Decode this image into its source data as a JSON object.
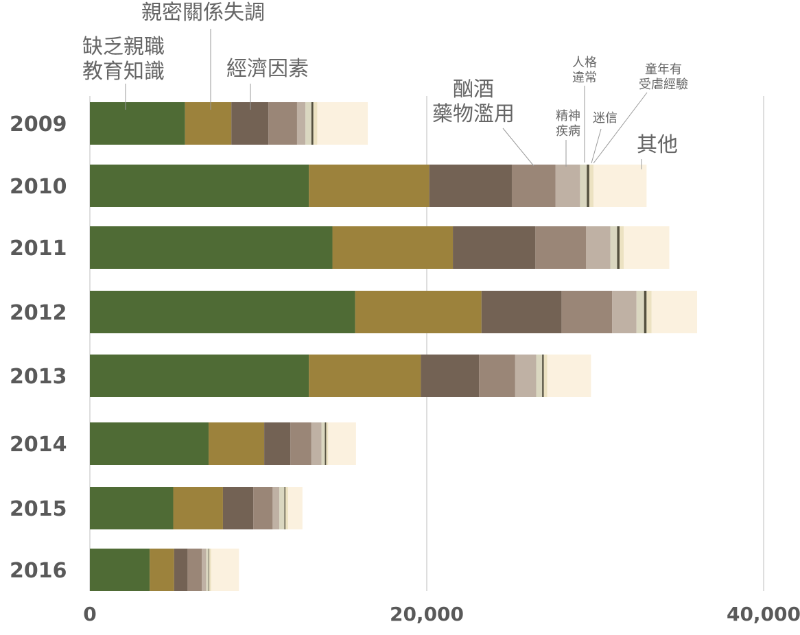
{
  "chart_data": {
    "type": "bar",
    "orientation": "horizontal",
    "stacked": true,
    "categories": [
      "2009",
      "2010",
      "2011",
      "2012",
      "2013",
      "2014",
      "2015",
      "2016"
    ],
    "xlim": [
      0,
      40000
    ],
    "x_ticks": [
      "0",
      "20,000",
      "40,000"
    ],
    "gridlines": true,
    "series": [
      {
        "name": "缺乏親職教育知識",
        "color": "#4f6b35",
        "values": [
          5650,
          13000,
          14400,
          15750,
          13000,
          7050,
          4950,
          3550
        ]
      },
      {
        "name": "親密關係失調",
        "color": "#9c823c",
        "values": [
          2750,
          7150,
          7150,
          7500,
          6650,
          3300,
          2950,
          1450
        ]
      },
      {
        "name": "經濟因素",
        "color": "#736254",
        "values": [
          2200,
          4900,
          4900,
          4750,
          3450,
          1550,
          1800,
          800
        ]
      },
      {
        "name": "酗酒藥物濫用",
        "color": "#9a8677",
        "values": [
          1700,
          2600,
          3000,
          3000,
          2150,
          1250,
          1150,
          850
        ]
      },
      {
        "name": "精神疾病",
        "color": "#bfb1a4",
        "values": [
          500,
          1450,
          1450,
          1450,
          1250,
          600,
          400,
          250
        ]
      },
      {
        "name": "迷信",
        "color": "#dad7c0",
        "values": [
          350,
          400,
          400,
          450,
          350,
          200,
          300,
          150
        ]
      },
      {
        "name": "人格違常",
        "color": "#55513f",
        "values": [
          120,
          150,
          150,
          150,
          100,
          80,
          60,
          40
        ]
      },
      {
        "name": "童年有受虐經驗",
        "color": "#ece2c2",
        "values": [
          230,
          250,
          250,
          300,
          200,
          120,
          160,
          110
        ]
      },
      {
        "name": "其他",
        "color": "#fbf1df",
        "values": [
          3000,
          3150,
          2700,
          2700,
          2600,
          1650,
          850,
          1650
        ]
      }
    ]
  },
  "annotations": {
    "parent_education": "缺乏親職\n教育知識",
    "intimacy": "親密關係失調",
    "economic": "經濟因素",
    "alcohol": "酗酒\n藥物濫用",
    "mental": "精神\n疾病",
    "personality": "人格\n違常",
    "superstition": "迷信",
    "childhood": "童年有\n受虐經驗",
    "other": "其他"
  }
}
